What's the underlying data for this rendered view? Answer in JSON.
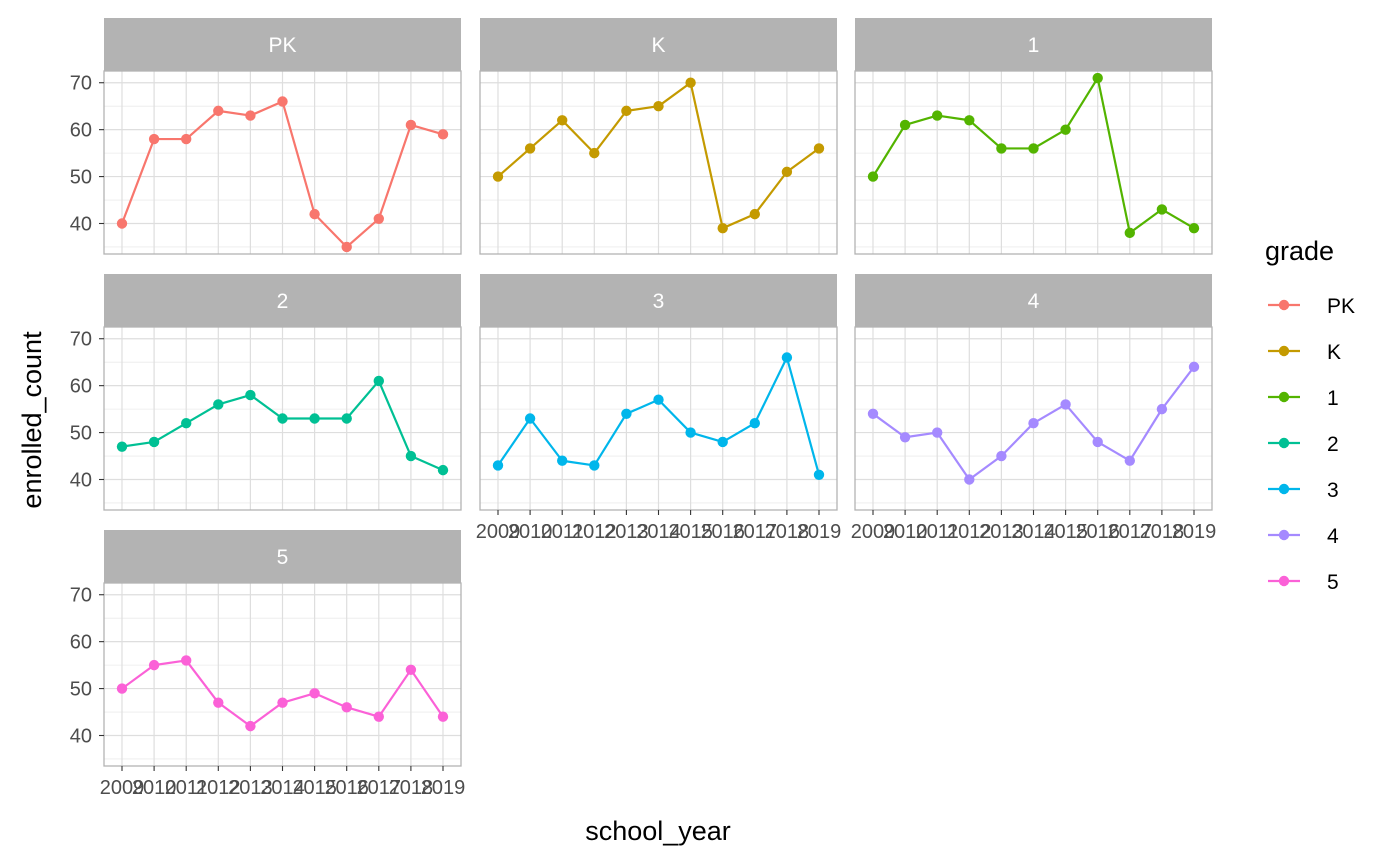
{
  "chart_data": {
    "type": "line",
    "facet_layout": "3 columns",
    "xlabel": "school_year",
    "ylabel": "enrolled_count",
    "ylim": [
      33.5,
      72.5
    ],
    "y_ticks": [
      40,
      50,
      60,
      70
    ],
    "x": [
      "2009",
      "2010",
      "2011",
      "2012",
      "2013",
      "2014",
      "2015",
      "2016",
      "2017",
      "2018",
      "2019"
    ],
    "x_tick_labels": [
      "2009",
      "2010",
      "2011",
      "2012",
      "2013",
      "2014",
      "2015",
      "2016",
      "2017",
      "2018",
      "2019"
    ],
    "legend": {
      "title": "grade",
      "position": "right"
    },
    "series": [
      {
        "name": "PK",
        "color": "#F8766D",
        "values": [
          40,
          58,
          58,
          64,
          63,
          66,
          42,
          35,
          41,
          61,
          59
        ]
      },
      {
        "name": "K",
        "color": "#C49A00",
        "values": [
          50,
          56,
          62,
          55,
          64,
          65,
          70,
          39,
          42,
          51,
          56
        ]
      },
      {
        "name": "1",
        "color": "#53B400",
        "values": [
          50,
          61,
          63,
          62,
          56,
          56,
          60,
          71,
          38,
          43,
          39
        ]
      },
      {
        "name": "2",
        "color": "#00C094",
        "values": [
          47,
          48,
          52,
          56,
          58,
          53,
          53,
          53,
          61,
          45,
          42
        ]
      },
      {
        "name": "3",
        "color": "#00B6EB",
        "values": [
          43,
          53,
          44,
          43,
          54,
          57,
          50,
          48,
          52,
          66,
          41
        ]
      },
      {
        "name": "4",
        "color": "#A58AFF",
        "values": [
          54,
          49,
          50,
          40,
          45,
          52,
          56,
          48,
          44,
          55,
          64
        ]
      },
      {
        "name": "5",
        "color": "#FB61D7",
        "values": [
          50,
          55,
          56,
          47,
          42,
          47,
          49,
          46,
          44,
          54,
          44
        ]
      }
    ]
  }
}
